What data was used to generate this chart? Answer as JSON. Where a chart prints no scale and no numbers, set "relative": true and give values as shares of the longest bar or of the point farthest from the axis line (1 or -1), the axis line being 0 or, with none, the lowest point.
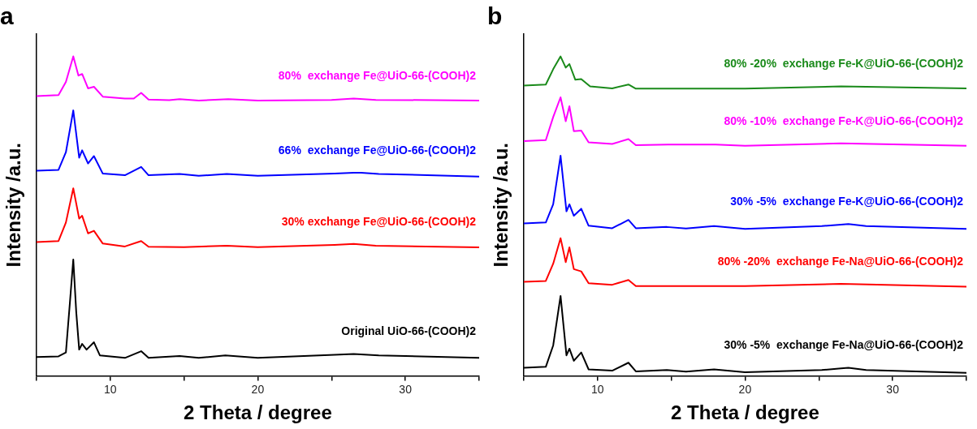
{
  "chart_data": [
    {
      "type": "line",
      "title": "a",
      "xlabel": "2 Theta / degree",
      "ylabel": "Intensity /a.u.",
      "relative": true,
      "xlim": [
        5,
        35
      ],
      "xticks": [
        {
          "value": 5,
          "label": null
        },
        10,
        {
          "value": 15,
          "label": null
        },
        20,
        {
          "value": 25,
          "label": null
        },
        30,
        {
          "value": 35,
          "label": null
        }
      ],
      "grid": false,
      "legend": false,
      "marker": "none",
      "line_style": "solid",
      "series": [
        {
          "name": "80%  exchange Fe@UiO-66-(COOH)2",
          "color": "#ff00ff",
          "x": [
            5,
            6.5,
            7.0,
            7.5,
            7.85,
            8.1,
            8.5,
            8.9,
            9.5,
            11,
            11.6,
            12.1,
            12.6,
            14,
            14.7,
            16,
            18,
            20,
            25,
            26.5,
            28,
            32,
            35
          ],
          "values": [
            0.876,
            0.879,
            0.92,
            1.0,
            0.94,
            0.945,
            0.9,
            0.905,
            0.874,
            0.868,
            0.868,
            0.886,
            0.865,
            0.863,
            0.866,
            0.862,
            0.866,
            0.862,
            0.864,
            0.868,
            0.864,
            0.863,
            0.862
          ]
        },
        {
          "name": "66%  exchange Fe@UiO-66-(COOH)2",
          "color": "#0000ff",
          "x": [
            5,
            6.5,
            7.0,
            7.5,
            7.9,
            8.1,
            8.5,
            8.9,
            9.5,
            11,
            12.1,
            12.6,
            14.7,
            16,
            17.9,
            20,
            25.2,
            26.5,
            27,
            28.2,
            35
          ],
          "values": [
            0.642,
            0.645,
            0.7,
            0.831,
            0.683,
            0.706,
            0.665,
            0.688,
            0.633,
            0.628,
            0.654,
            0.628,
            0.632,
            0.626,
            0.632,
            0.626,
            0.633,
            0.636,
            0.636,
            0.632,
            0.624
          ]
        },
        {
          "name": "30% exchange Fe@UiO-66-(COOH)2",
          "color": "#ff0000",
          "x": [
            5,
            6.5,
            7.0,
            7.5,
            7.9,
            8.1,
            8.5,
            8.9,
            9.5,
            11,
            12.1,
            12.6,
            15,
            17.9,
            20,
            25.2,
            26.5,
            28,
            35
          ],
          "values": [
            0.419,
            0.422,
            0.48,
            0.587,
            0.492,
            0.501,
            0.446,
            0.454,
            0.414,
            0.405,
            0.422,
            0.404,
            0.403,
            0.407,
            0.403,
            0.41,
            0.413,
            0.407,
            0.402
          ]
        },
        {
          "name": "Original UiO-66-(COOH)2",
          "color": "#000000",
          "x": [
            5,
            6.5,
            7.0,
            7.3,
            7.5,
            7.7,
            7.9,
            8.1,
            8.4,
            8.9,
            9.3,
            11,
            12.1,
            12.6,
            14.7,
            16,
            17.8,
            20,
            25.2,
            26.5,
            28.2,
            35
          ],
          "values": [
            0.059,
            0.061,
            0.073,
            0.246,
            0.364,
            0.2,
            0.082,
            0.1,
            0.082,
            0.105,
            0.064,
            0.056,
            0.077,
            0.056,
            0.062,
            0.056,
            0.064,
            0.056,
            0.066,
            0.068,
            0.064,
            0.056
          ]
        }
      ]
    },
    {
      "type": "line",
      "title": "b",
      "xlabel": "2 Theta / degree",
      "ylabel": "Intensity /a.u.",
      "relative": true,
      "xlim": [
        5,
        35
      ],
      "xticks": [
        {
          "value": 5,
          "label": null
        },
        10,
        {
          "value": 15,
          "label": null
        },
        20,
        {
          "value": 25,
          "label": null
        },
        30,
        {
          "value": 35,
          "label": null
        }
      ],
      "grid": false,
      "legend": false,
      "marker": "none",
      "line_style": "solid",
      "series": [
        {
          "name": "80% -20%  exchange Fe-K@UiO-66-(COOH)2",
          "color": "#1a8a1a",
          "x": [
            5,
            6.5,
            7.0,
            7.5,
            7.85,
            8.1,
            8.5,
            8.9,
            9.5,
            11,
            12.1,
            12.6,
            20,
            26.5,
            35
          ],
          "values": [
            0.909,
            0.912,
            0.96,
            1.0,
            0.965,
            0.976,
            0.927,
            0.929,
            0.906,
            0.9,
            0.912,
            0.899,
            0.899,
            0.906,
            0.9
          ]
        },
        {
          "name": "80% -10%  exchange Fe-K@UiO-66-(COOH)2",
          "color": "#ff00ff",
          "x": [
            5,
            6.5,
            7.0,
            7.5,
            7.85,
            8.1,
            8.4,
            8.9,
            9.4,
            11,
            12.1,
            12.6,
            14.8,
            18,
            20,
            26.5,
            35
          ],
          "values": [
            0.735,
            0.738,
            0.81,
            0.872,
            0.797,
            0.844,
            0.766,
            0.768,
            0.731,
            0.726,
            0.741,
            0.722,
            0.724,
            0.724,
            0.72,
            0.728,
            0.72
          ]
        },
        {
          "name": "30% -5%  exchange Fe-K@UiO-66-(COOH)2",
          "color": "#0000ff",
          "x": [
            5,
            6.5,
            7.0,
            7.5,
            7.9,
            8.1,
            8.4,
            8.9,
            9.4,
            11,
            12.1,
            12.6,
            14.7,
            16,
            17.9,
            20,
            25.2,
            26.5,
            27,
            28.2,
            35
          ],
          "values": [
            0.477,
            0.48,
            0.537,
            0.689,
            0.515,
            0.537,
            0.501,
            0.523,
            0.47,
            0.462,
            0.488,
            0.462,
            0.466,
            0.461,
            0.469,
            0.46,
            0.469,
            0.473,
            0.475,
            0.469,
            0.46
          ]
        },
        {
          "name": "80% -20%  exchange Fe-Na@UiO-66-(COOH)2",
          "color": "#ff0000",
          "x": [
            5,
            6.5,
            7.0,
            7.5,
            7.85,
            8.1,
            8.4,
            8.9,
            9.4,
            11,
            12.1,
            12.6,
            20,
            26.5,
            35
          ],
          "values": [
            0.294,
            0.297,
            0.351,
            0.431,
            0.356,
            0.402,
            0.334,
            0.327,
            0.29,
            0.285,
            0.3,
            0.281,
            0.281,
            0.288,
            0.279
          ]
        },
        {
          "name": "30% -5%  exchange Fe-Na@UiO-66-(COOH)2",
          "color": "#000000",
          "x": [
            5,
            6.5,
            7.0,
            7.5,
            7.9,
            8.1,
            8.4,
            8.9,
            9.4,
            11,
            12.1,
            12.6,
            14.7,
            16,
            17.9,
            20,
            25.2,
            26.5,
            27,
            28.2,
            35
          ],
          "values": [
            0.025,
            0.028,
            0.095,
            0.25,
            0.064,
            0.085,
            0.047,
            0.073,
            0.02,
            0.016,
            0.041,
            0.014,
            0.018,
            0.013,
            0.02,
            0.011,
            0.018,
            0.023,
            0.025,
            0.018,
            0.009
          ]
        }
      ]
    }
  ]
}
